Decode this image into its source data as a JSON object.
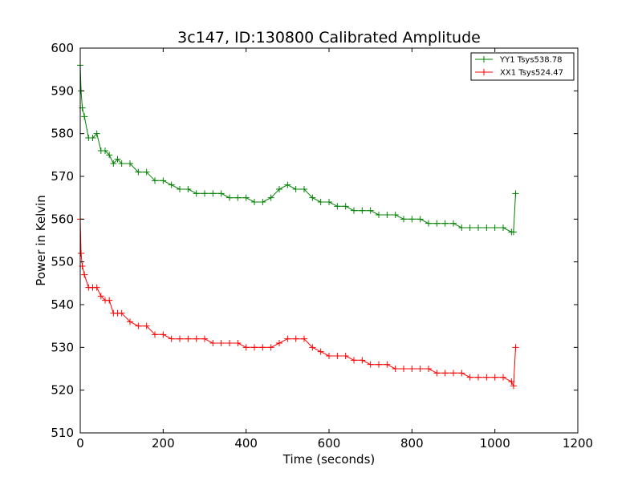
{
  "chart_data": {
    "type": "line",
    "title": "3c147, ID:130800 Calibrated Amplitude",
    "xlabel": "Time (seconds)",
    "ylabel": "Power in Kelvin",
    "xlim": [
      0,
      1200
    ],
    "ylim": [
      510,
      600
    ],
    "xticks": [
      0,
      200,
      400,
      600,
      800,
      1000,
      1200
    ],
    "yticks": [
      510,
      520,
      530,
      540,
      550,
      560,
      570,
      580,
      590,
      600
    ],
    "grid": false,
    "legend_position": "top-right",
    "marker": "plus",
    "series": [
      {
        "name": "YY1 Tsys538.78",
        "color": "#008000",
        "x": [
          0,
          2,
          5,
          10,
          20,
          30,
          40,
          50,
          60,
          70,
          80,
          90,
          100,
          120,
          140,
          160,
          180,
          200,
          220,
          240,
          260,
          280,
          300,
          320,
          340,
          360,
          380,
          400,
          420,
          440,
          460,
          480,
          500,
          520,
          540,
          560,
          580,
          600,
          620,
          640,
          660,
          680,
          700,
          720,
          740,
          760,
          780,
          800,
          820,
          840,
          860,
          880,
          900,
          920,
          940,
          960,
          980,
          1000,
          1020,
          1040,
          1045,
          1050
        ],
        "y": [
          596,
          590,
          586,
          584,
          579,
          579,
          580,
          576,
          576,
          575,
          573,
          574,
          573,
          573,
          571,
          571,
          569,
          569,
          568,
          567,
          567,
          566,
          566,
          566,
          566,
          565,
          565,
          565,
          564,
          564,
          565,
          567,
          568,
          567,
          567,
          565,
          564,
          564,
          563,
          563,
          562,
          562,
          562,
          561,
          561,
          561,
          560,
          560,
          560,
          559,
          559,
          559,
          559,
          558,
          558,
          558,
          558,
          558,
          558,
          557,
          557,
          566
        ]
      },
      {
        "name": "XX1 Tsys524.47",
        "color": "#ff0000",
        "x": [
          0,
          2,
          5,
          10,
          20,
          30,
          40,
          50,
          60,
          70,
          80,
          90,
          100,
          120,
          140,
          160,
          180,
          200,
          220,
          240,
          260,
          280,
          300,
          320,
          340,
          360,
          380,
          400,
          420,
          440,
          460,
          480,
          500,
          520,
          540,
          560,
          580,
          600,
          620,
          640,
          660,
          680,
          700,
          720,
          740,
          760,
          780,
          800,
          820,
          840,
          860,
          880,
          900,
          920,
          940,
          960,
          980,
          1000,
          1020,
          1040,
          1045,
          1050
        ],
        "y": [
          560,
          552,
          549,
          547,
          544,
          544,
          544,
          542,
          541,
          541,
          538,
          538,
          538,
          536,
          535,
          535,
          533,
          533,
          532,
          532,
          532,
          532,
          532,
          531,
          531,
          531,
          531,
          530,
          530,
          530,
          530,
          531,
          532,
          532,
          532,
          530,
          529,
          528,
          528,
          528,
          527,
          527,
          526,
          526,
          526,
          525,
          525,
          525,
          525,
          525,
          524,
          524,
          524,
          524,
          523,
          523,
          523,
          523,
          523,
          522,
          521,
          530
        ]
      }
    ]
  }
}
